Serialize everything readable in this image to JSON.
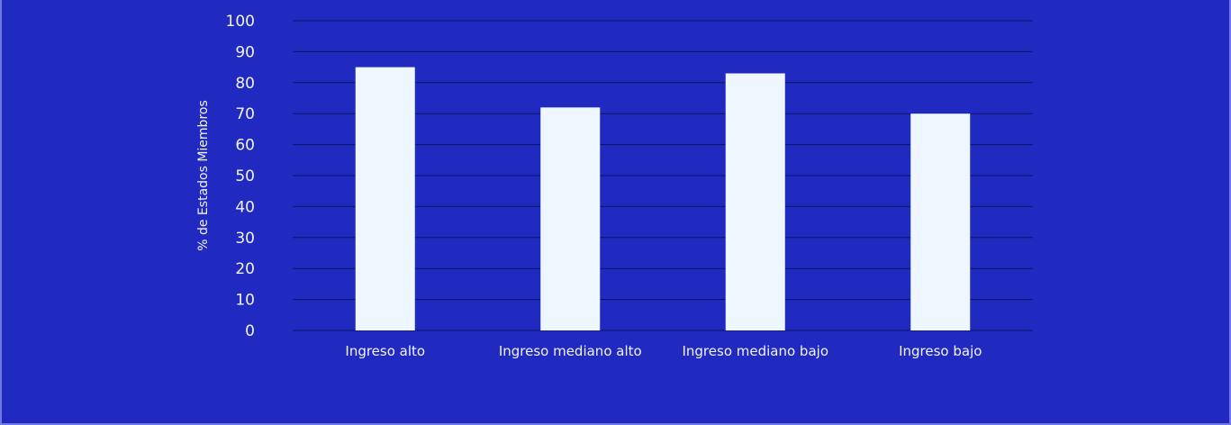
{
  "chart_data": {
    "type": "bar",
    "title": "",
    "xlabel": "",
    "ylabel": "% de Estados Miembros",
    "ylim": [
      0,
      100
    ],
    "yticks": [
      0,
      10,
      20,
      30,
      40,
      50,
      60,
      70,
      80,
      90,
      100
    ],
    "grid": true,
    "categories": [
      "Ingreso alto",
      "Ingreso mediano alto",
      "Ingreso mediano bajo",
      "Ingreso bajo"
    ],
    "values": [
      85,
      72,
      83,
      70
    ],
    "colors": {
      "background": "#2029c0",
      "bar": "#eef6ff",
      "grid": "#0e1466",
      "text": "#f2f4ff"
    }
  }
}
